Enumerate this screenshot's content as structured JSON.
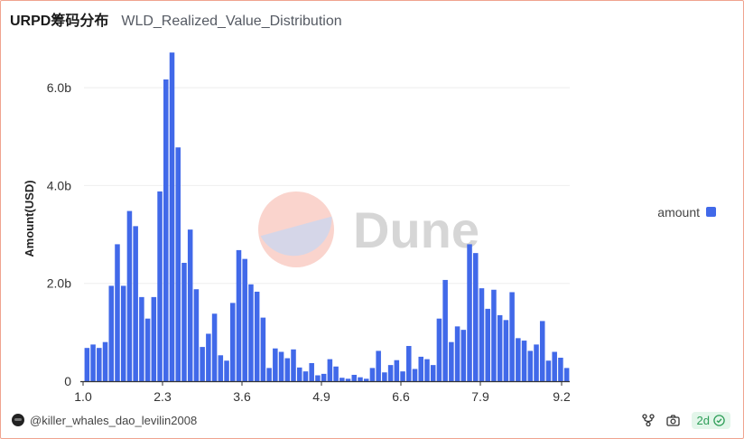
{
  "header": {
    "title": "URPD筹码分布",
    "subtitle": "WLD_Realized_Value_Distribution"
  },
  "watermark": {
    "text": "Dune",
    "colors": {
      "top": "#fad4cd",
      "bottom": "#d5d6e8"
    }
  },
  "footer": {
    "author": "@killer_whales_dao_levilin2008",
    "age": "2d",
    "icons": [
      "fork-icon",
      "camera-icon",
      "check-circle-icon"
    ]
  },
  "colors": {
    "bar": "#4169e9",
    "grid": "#eeeeee",
    "axis": "#333333",
    "tick_text": "#333333",
    "badge_green": "#2e9e58"
  },
  "chart_data": {
    "type": "bar",
    "xlabel": "",
    "ylabel": "Amount(USD)",
    "x_ticks": [
      "1.0",
      "2.3",
      "3.6",
      "4.9",
      "6.6",
      "7.9",
      "9.2"
    ],
    "y_ticks": [
      "0",
      "2.0b",
      "4.0b",
      "6.0b"
    ],
    "y_tick_values": [
      0,
      2.0,
      4.0,
      6.0
    ],
    "ylim": [
      0,
      7.0
    ],
    "y_unit": "billion USD",
    "legend": {
      "position": "right",
      "entries": [
        "amount"
      ]
    },
    "grid": true,
    "series": [
      {
        "name": "amount",
        "values": [
          0.68,
          0.75,
          0.68,
          0.8,
          1.95,
          2.8,
          1.95,
          3.48,
          3.17,
          1.72,
          1.28,
          1.72,
          3.88,
          6.17,
          6.72,
          4.78,
          2.42,
          3.1,
          1.88,
          0.7,
          0.97,
          1.38,
          0.53,
          0.42,
          1.6,
          2.68,
          2.5,
          1.98,
          1.83,
          1.3,
          0.27,
          0.67,
          0.6,
          0.47,
          0.65,
          0.28,
          0.2,
          0.37,
          0.12,
          0.15,
          0.45,
          0.3,
          0.07,
          0.05,
          0.13,
          0.08,
          0.05,
          0.27,
          0.62,
          0.18,
          0.33,
          0.43,
          0.2,
          0.72,
          0.25,
          0.5,
          0.45,
          0.33,
          1.28,
          2.07,
          0.8,
          1.12,
          1.05,
          2.8,
          2.62,
          1.9,
          1.48,
          1.87,
          1.35,
          1.25,
          1.82,
          0.88,
          0.83,
          0.62,
          0.75,
          1.23,
          0.42,
          0.6,
          0.48,
          0.27
        ]
      }
    ]
  }
}
